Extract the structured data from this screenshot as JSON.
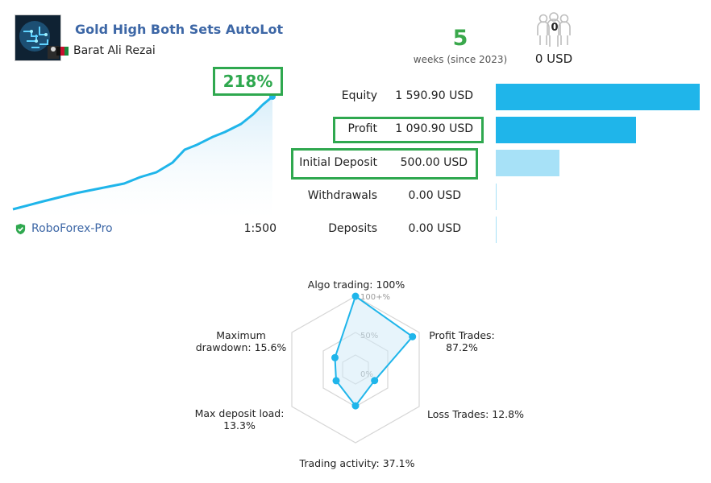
{
  "header": {
    "title": "Gold High Both Sets AutoLot",
    "author": "Barat Ali Rezai"
  },
  "weeks": {
    "value": "5",
    "label": "weeks (since 2023)"
  },
  "subscribers": {
    "count": "0",
    "amount": "0 USD"
  },
  "growth": {
    "value": "218%"
  },
  "account": {
    "broker": "RoboForex-Pro",
    "leverage": "1:500"
  },
  "finance": {
    "rows": [
      {
        "label": "Equity",
        "value": "1 590.90 USD",
        "amount": 1590.9
      },
      {
        "label": "Profit",
        "value": "1 090.90 USD",
        "amount": 1090.9
      },
      {
        "label": "Initial Deposit",
        "value": "500.00 USD",
        "amount": 500.0
      },
      {
        "label": "Withdrawals",
        "value": "0.00 USD",
        "amount": 0
      },
      {
        "label": "Deposits",
        "value": "0.00 USD",
        "amount": 0
      }
    ]
  },
  "radar": {
    "scale_labels": [
      "100+%",
      "50%",
      "0%"
    ],
    "axes": [
      {
        "label1": "Algo trading: 100%",
        "label2": "",
        "value": 100
      },
      {
        "label1": "Profit Trades:",
        "label2": "87.2%",
        "value": 87.2
      },
      {
        "label1": "Loss Trades: 12.8%",
        "label2": "",
        "value": 12.8
      },
      {
        "label1": "Trading activity: 37.1%",
        "label2": "",
        "value": 37.1
      },
      {
        "label1": "Max deposit load:",
        "label2": "13.3%",
        "value": 13.3
      },
      {
        "label1": "Maximum",
        "label2": "drawdown: 15.6%",
        "value": 15.6
      }
    ]
  },
  "colors": {
    "accent_blue": "#1fb5ea",
    "light_blue": "#a7e1f7",
    "green": "#2fa84f",
    "title_blue": "#3d67a6"
  }
}
